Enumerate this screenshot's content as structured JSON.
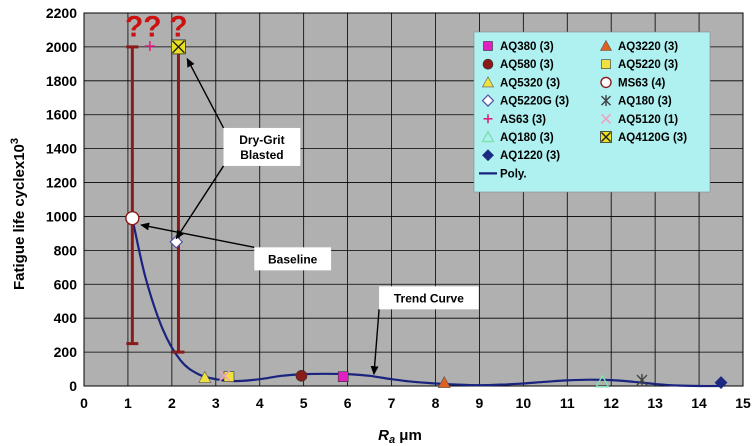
{
  "chart_data": {
    "type": "scatter",
    "xlabel": "Ra μm",
    "xlabel_main": "R",
    "xlabel_sub": "a",
    "xlabel_unit": " μm",
    "ylabel": "Fatigue life cyclex10",
    "ylabel_sup": "3",
    "xlim": [
      0,
      15
    ],
    "ylim": [
      0,
      2200
    ],
    "xticks": [
      0,
      1,
      2,
      3,
      4,
      5,
      6,
      7,
      8,
      9,
      10,
      11,
      12,
      13,
      14,
      15
    ],
    "yticks": [
      0,
      200,
      400,
      600,
      800,
      1000,
      1200,
      1400,
      1600,
      1800,
      2000,
      2200
    ],
    "grid": true,
    "plot_background": "#b0b0b0",
    "legend_placement": "top-right",
    "legend_background": "#aff0f0",
    "series": [
      {
        "name": "AQ380 (3)",
        "marker": "square",
        "color": "#e020c0",
        "points": [
          [
            5.9,
            55
          ]
        ]
      },
      {
        "name": "AQ3220 (3)",
        "marker": "triangle",
        "color": "#e06020",
        "points": [
          [
            8.2,
            20
          ]
        ]
      },
      {
        "name": "AQ580 (3)",
        "marker": "circle",
        "color": "#8b1a1a",
        "points": [
          [
            4.95,
            60
          ]
        ]
      },
      {
        "name": "AQ5220 (3)",
        "marker": "square",
        "color": "#f0e040",
        "points": [
          [
            3.3,
            55
          ]
        ]
      },
      {
        "name": "AQ5320 (3)",
        "marker": "triangle",
        "color": "#f0e040",
        "points": [
          [
            2.75,
            50
          ]
        ]
      },
      {
        "name": "MS63 (4)",
        "marker": "circle-open",
        "color": "#8b1a1a",
        "points": [
          [
            1.1,
            990
          ]
        ]
      },
      {
        "name": "AQ5220G (3)",
        "marker": "diamond-open",
        "color": "#5050a0",
        "points": [
          [
            2.1,
            850
          ]
        ]
      },
      {
        "name": "AQ180 (3)",
        "marker": "star",
        "color": "#404040",
        "points": [
          [
            12.7,
            35
          ]
        ]
      },
      {
        "name": "AS63 (3)",
        "marker": "plus",
        "color": "#e02080",
        "points": [
          [
            1.5,
            2005
          ]
        ]
      },
      {
        "name": "AQ5120 (1)",
        "marker": "x",
        "color": "#f0a0c0",
        "points": [
          [
            3.2,
            60
          ]
        ]
      },
      {
        "name": "AQ180 (3)",
        "marker": "triangle-open",
        "color": "#80e0b0",
        "points": [
          [
            11.8,
            25
          ]
        ]
      },
      {
        "name": "AQ4120G (3)",
        "marker": "x-square",
        "color": "#e8e020",
        "points": [
          [
            2.15,
            2000
          ]
        ]
      },
      {
        "name": "AQ1220 (3)",
        "marker": "diamond",
        "color": "#1a2a80",
        "points": [
          [
            14.5,
            20
          ]
        ]
      },
      {
        "name": "Poly.",
        "marker": "line",
        "color": "#1a237e",
        "points": []
      }
    ],
    "trend_curve": {
      "x": [
        1.1,
        1.4,
        1.8,
        2.2,
        2.6,
        3.0,
        3.3,
        3.6,
        4.0,
        4.5,
        5.0,
        5.5,
        6.0,
        6.5,
        7.0,
        7.5,
        8.0,
        8.5,
        9.0,
        9.5,
        10.0,
        10.5,
        11.0,
        11.5,
        12.0,
        12.5,
        13.0,
        13.5,
        14.0,
        14.5
      ],
      "y": [
        990,
        640,
        330,
        150,
        70,
        40,
        30,
        30,
        40,
        60,
        70,
        72,
        70,
        60,
        40,
        25,
        15,
        8,
        5,
        8,
        15,
        25,
        33,
        37,
        35,
        25,
        12,
        3,
        0,
        0
      ]
    },
    "error_bars": [
      {
        "x": 1.1,
        "y_low": 250,
        "y_high": 2000,
        "color": "#8b1a1a"
      },
      {
        "x": 2.15,
        "y_low": 200,
        "y_high": 2000,
        "color": "#8b1a1a"
      }
    ],
    "question_marks": [
      {
        "text": "??",
        "x": 1.35,
        "y": 2060
      },
      {
        "text": "?",
        "x": 2.15,
        "y": 2060
      }
    ],
    "annotations": [
      {
        "lines": [
          "Dry-Grit",
          "Blasted"
        ],
        "box_x": 4.05,
        "box_y": 1410,
        "arrow_targets": [
          [
            2.35,
            1930
          ],
          [
            2.1,
            870
          ]
        ]
      },
      {
        "lines": [
          "Baseline"
        ],
        "box_x": 4.75,
        "box_y": 750,
        "arrow_targets": [
          [
            1.3,
            950
          ]
        ]
      },
      {
        "lines": [
          "Trend Curve"
        ],
        "box_x": 7.85,
        "box_y": 520,
        "arrow_targets": [
          [
            6.6,
            70
          ]
        ]
      }
    ]
  }
}
